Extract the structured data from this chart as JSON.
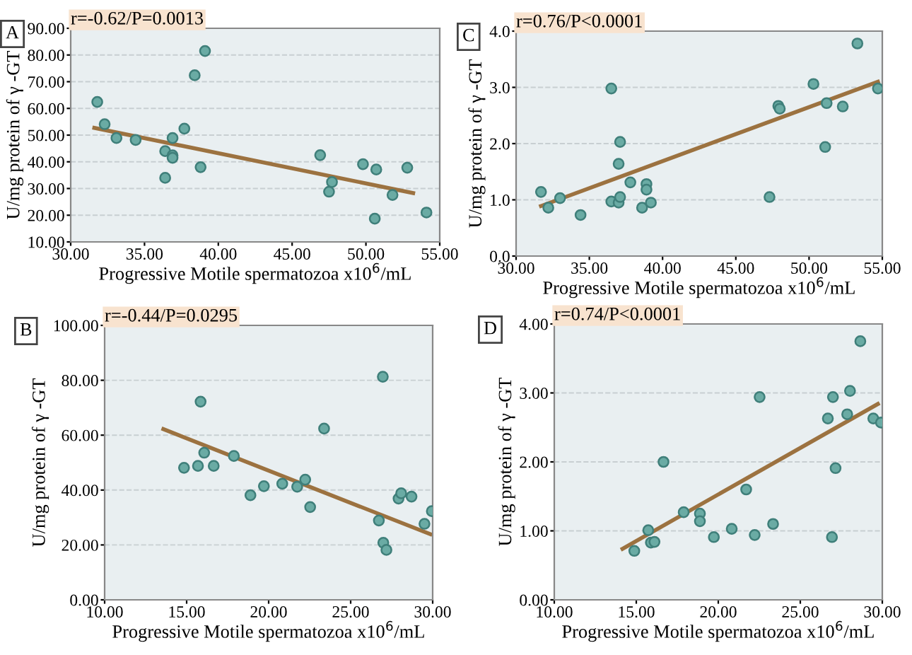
{
  "chart_data": [
    {
      "type": "scatter",
      "title": "r=-0.62/P=0.0013",
      "annotations": [
        "A"
      ],
      "xlabel": "Progressive Motile spermatozoa x10$^{6}$/mL",
      "ylabel": "U/mg protein of γ -GT",
      "grid": "y",
      "marker": "circle",
      "xlim": [
        30,
        55
      ],
      "ylim": [
        10,
        90
      ],
      "xticks": [
        {
          "value": 30,
          "label": "30.00"
        },
        {
          "value": 35,
          "label": "35.00"
        },
        {
          "value": 40,
          "label": "40.00"
        },
        {
          "value": 45,
          "label": "45.00"
        },
        {
          "value": 50,
          "label": "50.00"
        },
        {
          "value": 55,
          "label": "55.00"
        }
      ],
      "yticks": [
        {
          "value": 10,
          "label": "10.00"
        },
        {
          "value": 20,
          "label": "20.00"
        },
        {
          "value": 30,
          "label": "30.00"
        },
        {
          "value": 40,
          "label": "40.00"
        },
        {
          "value": 50,
          "label": "50.00"
        },
        {
          "value": 60,
          "label": "60.00"
        },
        {
          "value": 70,
          "label": "70.00"
        },
        {
          "value": 80,
          "label": "80.00"
        },
        {
          "value": 90,
          "label": "90.00"
        }
      ],
      "series": [
        {
          "color": "#6aaba4",
          "x": [
            31.8,
            32.3,
            33.1,
            34.4,
            36.4,
            36.4,
            36.9,
            36.9,
            36.9,
            37.7,
            38.4,
            39.1,
            38.8,
            46.9,
            47.5,
            47.7,
            49.8,
            50.7,
            50.6,
            51.8,
            52.8,
            54.1
          ],
          "values": [
            62.4,
            54.1,
            48.9,
            48.2,
            44.0,
            34.0,
            42.4,
            41.5,
            48.9,
            52.4,
            72.4,
            81.5,
            38.0,
            42.5,
            28.8,
            32.4,
            39.1,
            37.1,
            18.7,
            27.6,
            37.8,
            21.0
          ]
        },
        {
          "type": "line",
          "marker": "none",
          "color": "#9c7240",
          "x": [
            31.6,
            53.2
          ],
          "values": [
            52.7,
            28.3
          ]
        }
      ]
    },
    {
      "type": "scatter",
      "title": "r=0.76/P<0.0001",
      "annotations": [
        "C"
      ],
      "xlabel": "Progressive Motile spermatozoa x10$^{6}$/mL",
      "ylabel": "U/mg protein of γ -GT",
      "grid": "y",
      "marker": "circle",
      "xlim": [
        30,
        55
      ],
      "ylim": [
        0,
        4
      ],
      "xticks": [
        {
          "value": 30,
          "label": "30.00"
        },
        {
          "value": 35,
          "label": "35.00"
        },
        {
          "value": 40,
          "label": "40.00"
        },
        {
          "value": 45,
          "label": "45.00"
        },
        {
          "value": 50,
          "label": "50.00"
        },
        {
          "value": 55,
          "label": "55.00"
        }
      ],
      "yticks": [
        {
          "value": 0,
          "label": "0.0"
        },
        {
          "value": 1,
          "label": "1.0"
        },
        {
          "value": 2,
          "label": "2.0"
        },
        {
          "value": 3,
          "label": "3.0"
        },
        {
          "value": 4,
          "label": "4.0"
        }
      ],
      "series": [
        {
          "color": "#6aaba4",
          "x": [
            31.7,
            32.2,
            33.0,
            34.4,
            36.5,
            36.5,
            37.0,
            37.0,
            37.1,
            37.1,
            37.8,
            38.6,
            38.9,
            38.9,
            39.2,
            47.3,
            47.9,
            48.0,
            50.3,
            51.1,
            51.2,
            52.3,
            53.3,
            54.7
          ],
          "values": [
            1.14,
            0.86,
            1.03,
            0.73,
            2.98,
            0.97,
            1.64,
            0.95,
            1.05,
            2.03,
            1.31,
            0.86,
            1.28,
            1.18,
            0.95,
            1.05,
            2.67,
            2.62,
            3.06,
            1.94,
            2.72,
            2.66,
            3.78,
            2.98
          ]
        },
        {
          "type": "line",
          "marker": "none",
          "color": "#9c7240",
          "x": [
            31.7,
            54.7
          ],
          "values": [
            0.89,
            3.1
          ]
        }
      ]
    },
    {
      "type": "scatter",
      "title": "r=-0.44/P=0.0295",
      "annotations": [
        "B"
      ],
      "xlabel": "Progressive Motile spermatozoa x10$^{6}$/mL",
      "ylabel": "U/mg protein of γ -GT",
      "grid": "y",
      "marker": "circle",
      "xlim": [
        10,
        30
      ],
      "ylim": [
        0,
        100
      ],
      "xticks": [
        {
          "value": 10,
          "label": "10.00"
        },
        {
          "value": 15,
          "label": "15.00"
        },
        {
          "value": 20,
          "label": "20.00"
        },
        {
          "value": 25,
          "label": "25.00"
        },
        {
          "value": 30,
          "label": "30.00"
        }
      ],
      "yticks": [
        {
          "value": 0,
          "label": "0.00"
        },
        {
          "value": 20,
          "label": "20.00"
        },
        {
          "value": 40,
          "label": "40.00"
        },
        {
          "value": 60,
          "label": "60.00"
        },
        {
          "value": 80,
          "label": "80.00"
        },
        {
          "value": 100,
          "label": "100.00"
        }
      ],
      "series": [
        {
          "color": "#6aaba4",
          "x": [
            14.84,
            15.69,
            15.85,
            16.07,
            16.65,
            17.88,
            18.89,
            19.71,
            20.83,
            21.74,
            22.23,
            22.53,
            23.38,
            26.72,
            26.96,
            26.99,
            27.18,
            27.92,
            28.08,
            28.71,
            29.5,
            29.95
          ],
          "values": [
            48.1,
            48.8,
            72.2,
            53.6,
            48.8,
            52.4,
            38.1,
            41.4,
            42.3,
            41.2,
            43.8,
            33.8,
            62.4,
            28.9,
            81.3,
            20.8,
            18.2,
            36.9,
            38.8,
            37.6,
            27.7,
            32.3
          ]
        },
        {
          "type": "line",
          "marker": "none",
          "color": "#9c7240",
          "x": [
            13.58,
            29.86
          ],
          "values": [
            62.2,
            23.9
          ]
        }
      ]
    },
    {
      "type": "scatter",
      "title": "r=0.74/P<0.0001",
      "annotations": [
        "D"
      ],
      "xlabel": "Progressive Motile spermatozoa x10$^{6}$/mL",
      "ylabel": "U/mg protein of γ -GT",
      "grid": "y",
      "marker": "circle",
      "xlim": [
        10,
        30
      ],
      "ylim": [
        0,
        4
      ],
      "xticks": [
        {
          "value": 10,
          "label": "10.00"
        },
        {
          "value": 15,
          "label": "15.00"
        },
        {
          "value": 20,
          "label": "20.00"
        },
        {
          "value": 25,
          "label": "25.00"
        },
        {
          "value": 30,
          "label": "30.00"
        }
      ],
      "yticks": [
        {
          "value": 0,
          "label": "0.00"
        },
        {
          "value": 1,
          "label": "1.00"
        },
        {
          "value": 2,
          "label": "2.00"
        },
        {
          "value": 3,
          "label": "3.00"
        },
        {
          "value": 4,
          "label": "4.00"
        }
      ],
      "series": [
        {
          "color": "#6aaba4",
          "x": [
            14.88,
            15.73,
            15.89,
            16.11,
            16.66,
            17.89,
            18.88,
            18.88,
            19.73,
            20.82,
            21.7,
            22.22,
            22.52,
            23.34,
            26.68,
            26.93,
            26.99,
            27.15,
            27.86,
            28.03,
            28.66,
            29.45,
            29.92
          ],
          "values": [
            0.71,
            1.01,
            0.83,
            0.84,
            2.0,
            1.27,
            1.25,
            1.14,
            0.91,
            1.03,
            1.6,
            0.94,
            2.94,
            1.1,
            2.63,
            0.91,
            2.94,
            1.91,
            2.69,
            3.03,
            3.75,
            2.63,
            2.57
          ]
        },
        {
          "type": "line",
          "marker": "none",
          "color": "#9c7240",
          "x": [
            14.16,
            29.73
          ],
          "values": [
            0.74,
            2.84
          ]
        }
      ]
    }
  ]
}
